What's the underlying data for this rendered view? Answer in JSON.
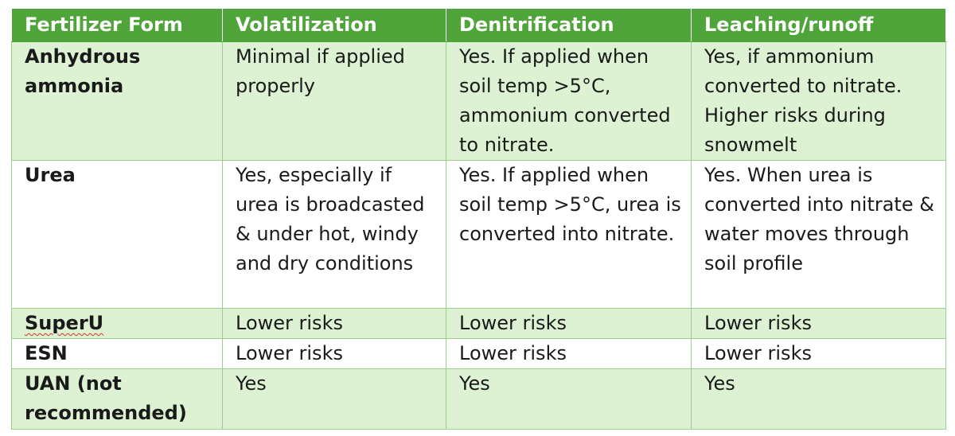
{
  "headers": [
    "Fertilizer Form",
    "Volatilization",
    "Denitrification",
    "Leaching/runoff"
  ],
  "rows": [
    {
      "form": "Anhydrous ammonia",
      "volatilization": "Minimal if applied properly",
      "denitrification": "Yes. If applied when soil temp >5°C, ammonium converted to nitrate.",
      "leaching": "Yes, if ammonium converted to nitrate. Higher risks during snowmelt"
    },
    {
      "form": "Urea",
      "volatilization": "Yes, especially if urea is broadcasted & under hot, windy and dry conditions",
      "denitrification": "Yes. If applied when soil temp >5°C, urea is converted into nitrate.",
      "leaching": "Yes. When urea is converted into nitrate & water moves through soil profile"
    },
    {
      "form": "SuperU",
      "volatilization": "Lower risks",
      "denitrification": "Lower risks",
      "leaching": "Lower risks"
    },
    {
      "form": "ESN",
      "volatilization": "Lower risks",
      "denitrification": "Lower risks",
      "leaching": "Lower risks"
    },
    {
      "form": "UAN (not recommended)",
      "volatilization": "Yes",
      "denitrification": "Yes",
      "leaching": "Yes"
    }
  ],
  "colors": {
    "header_bg": "#4fa53a",
    "header_text": "#ffffff",
    "row_shade": "#dcf2d2",
    "row_plain": "#ffffff",
    "border": "#9bd08a"
  }
}
